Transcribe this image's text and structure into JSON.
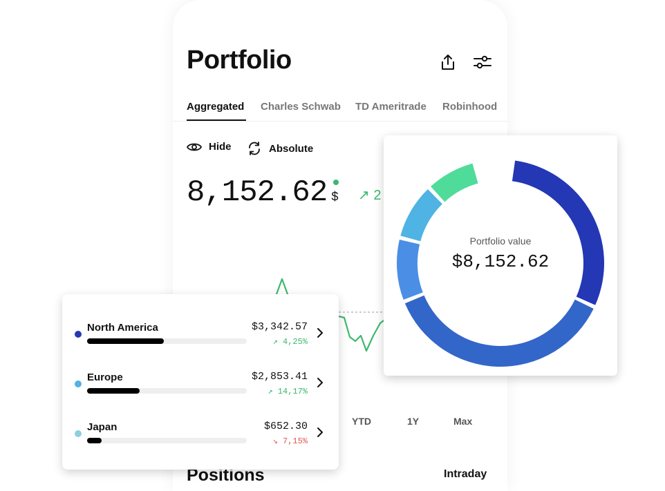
{
  "header": {
    "title": "Portfolio",
    "share_icon": "share-icon",
    "filter_icon": "sliders-icon"
  },
  "tabs": [
    {
      "label": "Aggregated",
      "active": true
    },
    {
      "label": "Charles Schwab",
      "active": false
    },
    {
      "label": "TD Ameritrade",
      "active": false
    },
    {
      "label": "Robinhood",
      "active": false
    }
  ],
  "controls": {
    "hide_label": "Hide",
    "hide_icon": "eye-icon",
    "absolute_label": "Absolute",
    "absolute_icon": "refresh-icon"
  },
  "balance": {
    "value": "8,152.62",
    "currency": "$",
    "trend_icon": "arrow-up-right-icon",
    "trend_partial": "↗ 2"
  },
  "time_ranges": [
    "YTD",
    "1Y",
    "Max"
  ],
  "sections": {
    "positions": "Positions",
    "intraday": "Intraday"
  },
  "regions": [
    {
      "name": "North America",
      "value": "$3,342.57",
      "change": "↗ 4,25%",
      "direction": "up",
      "share": 0.48,
      "dot_color": "#2437b5"
    },
    {
      "name": "Europe",
      "value": "$2,853.41",
      "change": "↗ 14,17%",
      "direction": "up",
      "share": 0.33,
      "dot_color": "#4fb3e3"
    },
    {
      "name": "Japan",
      "value": "$652.30",
      "change": "↘ 7,15%",
      "direction": "down",
      "share": 0.09,
      "dot_color": "#8cd0de"
    }
  ],
  "donut": {
    "label": "Portfolio value",
    "value": "$8,152.62",
    "segments": [
      {
        "share": 0.3,
        "color": "#2437b5"
      },
      {
        "share": 0.37,
        "color": "#3366c9"
      },
      {
        "share": 0.1,
        "color": "#4a8ee6"
      },
      {
        "share": 0.09,
        "color": "#4fb3e3"
      },
      {
        "share": 0.08,
        "color": "#4fdc9b"
      }
    ]
  },
  "colors": {
    "positive": "#3db86d",
    "negative": "#e05a4f"
  }
}
